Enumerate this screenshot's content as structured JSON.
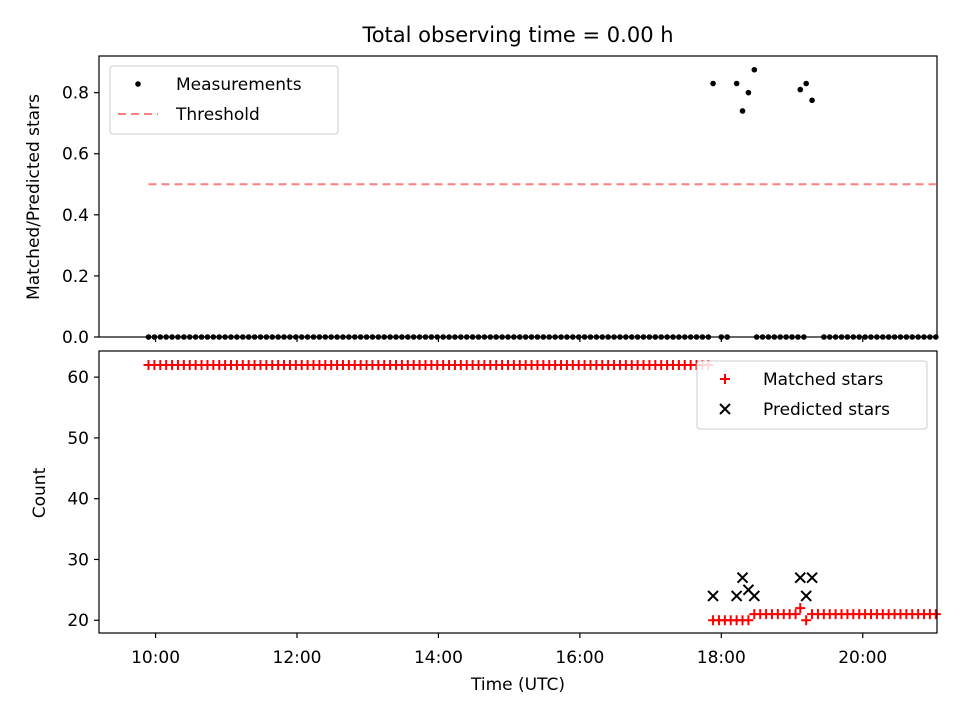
{
  "chart_data": {
    "title": "Total observing time = 0.00 h",
    "xlabel": "Time (UTC)",
    "xticks": [
      {
        "label": "10:00",
        "t": 600
      },
      {
        "label": "12:00",
        "t": 720
      },
      {
        "label": "14:00",
        "t": 840
      },
      {
        "label": "16:00",
        "t": 960
      },
      {
        "label": "18:00",
        "t": 1080
      },
      {
        "label": "20:00",
        "t": 1200
      }
    ],
    "xlim_minutes": [
      552,
      1263
    ],
    "panels": [
      {
        "type": "scatter",
        "ylabel": "Matched/Predicted stars",
        "ylim": [
          0,
          0.92
        ],
        "yticks": [
          {
            "label": "0.0",
            "v": 0.0
          },
          {
            "label": "0.2",
            "v": 0.2
          },
          {
            "label": "0.4",
            "v": 0.4
          },
          {
            "label": "0.6",
            "v": 0.6
          },
          {
            "label": "0.8",
            "v": 0.8
          }
        ],
        "legend_position": "top-left",
        "series": [
          {
            "name": "Measurements",
            "marker": "dot",
            "color": "#000000",
            "segments": [
              {
                "start": 594,
                "end": 1069,
                "step": 5,
                "value": 0
              },
              {
                "start": 1080,
                "end": 1087,
                "step": 5,
                "value": 0
              },
              {
                "start": 1110,
                "end": 1140,
                "step": 5,
                "value": 0
              },
              {
                "start": 1167,
                "end": 1262,
                "step": 5,
                "value": 0
              }
            ],
            "points": [
              {
                "t": 1073,
                "v": 0.83
              },
              {
                "t": 1093,
                "v": 0.83
              },
              {
                "t": 1098,
                "v": 0.74
              },
              {
                "t": 1103,
                "v": 0.8
              },
              {
                "t": 1108,
                "v": 0.875
              },
              {
                "t": 1147,
                "v": 0.81
              },
              {
                "t": 1152,
                "v": 0.83
              },
              {
                "t": 1157,
                "v": 0.775
              },
              {
                "t": 1145,
                "v": 0
              },
              {
                "t": 1150,
                "v": 0
              }
            ]
          },
          {
            "name": "Threshold",
            "style": "dashed",
            "color": "#ff7f7f",
            "x": [
              594,
              1262
            ],
            "y": [
              0.5,
              0.5
            ]
          }
        ]
      },
      {
        "type": "scatter",
        "ylabel": "Count",
        "ylim": [
          17.9,
          64.3
        ],
        "yticks": [
          {
            "label": "20",
            "v": 20
          },
          {
            "label": "30",
            "v": 30
          },
          {
            "label": "40",
            "v": 40
          },
          {
            "label": "50",
            "v": 50
          },
          {
            "label": "60",
            "v": 60
          }
        ],
        "legend_position": "top-right",
        "series": [
          {
            "name": "Matched stars",
            "marker": "plus",
            "color": "#ff0000",
            "segments": [
              {
                "start": 594,
                "end": 1069,
                "step": 5,
                "value": 62
              },
              {
                "start": 1073,
                "end": 1103,
                "step": 5,
                "value": 20
              },
              {
                "start": 1108,
                "end": 1147,
                "step": 5,
                "value": 21
              },
              {
                "start": 1157,
                "end": 1262,
                "step": 5,
                "value": 21
              }
            ],
            "points": [
              {
                "t": 1147,
                "v": 22
              },
              {
                "t": 1152,
                "v": 20
              }
            ]
          },
          {
            "name": "Predicted stars",
            "marker": "x",
            "color": "#000000",
            "points": [
              {
                "t": 1073,
                "v": 24
              },
              {
                "t": 1093,
                "v": 24
              },
              {
                "t": 1098,
                "v": 27
              },
              {
                "t": 1103,
                "v": 25
              },
              {
                "t": 1108,
                "v": 24
              },
              {
                "t": 1147,
                "v": 27
              },
              {
                "t": 1152,
                "v": 24
              },
              {
                "t": 1157,
                "v": 27
              }
            ]
          }
        ]
      }
    ]
  }
}
